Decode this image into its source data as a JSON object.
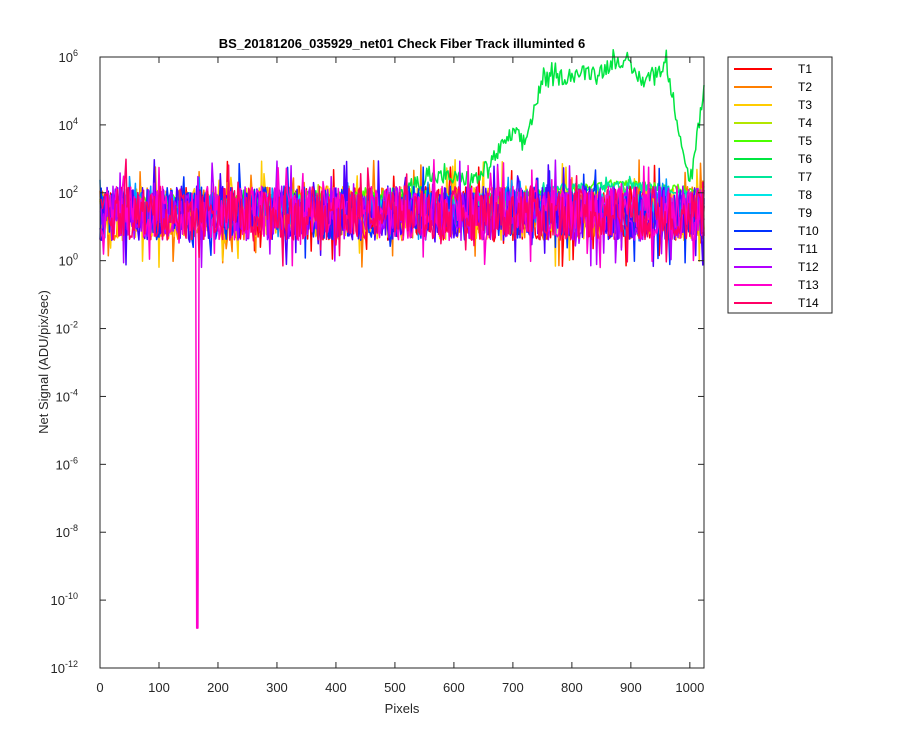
{
  "chart_data": {
    "type": "line",
    "title": "BS_20181206_035929_net01   Check Fiber     Track illuminted 6",
    "xlabel": "Pixels",
    "ylabel": "Net Signal (ADU/pix/sec)",
    "xlim": [
      0,
      1024
    ],
    "ylim": [
      1e-12,
      1000000.0
    ],
    "yscale": "log",
    "xticks": [
      "0",
      "100",
      "200",
      "300",
      "400",
      "500",
      "600",
      "700",
      "800",
      "900",
      "1000"
    ],
    "yticks": [
      {
        "base": "10",
        "exp": "6",
        "value": 1000000.0
      },
      {
        "base": "10",
        "exp": "4",
        "value": 10000.0
      },
      {
        "base": "10",
        "exp": "2",
        "value": 100.0
      },
      {
        "base": "10",
        "exp": "0",
        "value": 1
      },
      {
        "base": "10",
        "exp": "-2",
        "value": 0.01
      },
      {
        "base": "10",
        "exp": "-4",
        "value": 0.0001
      },
      {
        "base": "10",
        "exp": "-6",
        "value": 1e-06
      },
      {
        "base": "10",
        "exp": "-8",
        "value": 1e-08
      },
      {
        "base": "10",
        "exp": "-10",
        "value": 1e-10
      },
      {
        "base": "10",
        "exp": "-12",
        "value": 1e-12
      }
    ],
    "grid": false,
    "legend_position": "outside-right",
    "series": [
      {
        "name": "T1",
        "color": "#ff0000",
        "baseline": 25,
        "spread": 1.0
      },
      {
        "name": "T2",
        "color": "#ff7f00",
        "baseline": 25,
        "spread": 1.0
      },
      {
        "name": "T3",
        "color": "#ffcc00",
        "baseline": 25,
        "spread": 1.0
      },
      {
        "name": "T4",
        "color": "#b3e600",
        "baseline": 40,
        "spread": 0.4
      },
      {
        "name": "T5",
        "color": "#4cff00",
        "baseline": 70,
        "spread": 0.15,
        "points": [
          [
            0,
            70
          ],
          [
            100,
            65
          ],
          [
            200,
            70
          ],
          [
            300,
            80
          ],
          [
            400,
            90
          ],
          [
            500,
            80
          ],
          [
            600,
            75
          ],
          [
            700,
            80
          ],
          [
            800,
            120
          ],
          [
            880,
            200
          ],
          [
            950,
            150
          ],
          [
            1024,
            100
          ]
        ]
      },
      {
        "name": "T6",
        "color": "#00e640",
        "baseline": 40,
        "spread": 0.3,
        "points": [
          [
            0,
            40
          ],
          [
            400,
            40
          ],
          [
            480,
            60
          ],
          [
            560,
            300
          ],
          [
            640,
            250
          ],
          [
            700,
            6000
          ],
          [
            720,
            3000
          ],
          [
            750,
            200000
          ],
          [
            800,
            300000
          ],
          [
            850,
            400000
          ],
          [
            880,
            900000
          ],
          [
            920,
            200000
          ],
          [
            960,
            600000
          ],
          [
            1000,
            200
          ],
          [
            1024,
            100000
          ]
        ]
      },
      {
        "name": "T7",
        "color": "#00e699",
        "baseline": 50,
        "spread": 0.2,
        "points": [
          [
            0,
            50
          ],
          [
            600,
            50
          ],
          [
            700,
            90
          ],
          [
            800,
            130
          ],
          [
            880,
            160
          ],
          [
            950,
            130
          ],
          [
            1024,
            60
          ]
        ]
      },
      {
        "name": "T8",
        "color": "#00e6e6",
        "baseline": 45,
        "spread": 0.4
      },
      {
        "name": "T9",
        "color": "#0099ff",
        "baseline": 35,
        "spread": 0.6
      },
      {
        "name": "T10",
        "color": "#0033ff",
        "baseline": 25,
        "spread": 1.0
      },
      {
        "name": "T11",
        "color": "#4c00ff",
        "baseline": 25,
        "spread": 1.0
      },
      {
        "name": "T12",
        "color": "#b300ff",
        "baseline": 25,
        "spread": 1.0
      },
      {
        "name": "T13",
        "color": "#ff00cc",
        "baseline": 25,
        "spread": 1.0,
        "min_point": [
          165,
          1.5e-11
        ]
      },
      {
        "name": "T14",
        "color": "#ff0066",
        "baseline": 25,
        "spread": 1.0
      }
    ]
  }
}
